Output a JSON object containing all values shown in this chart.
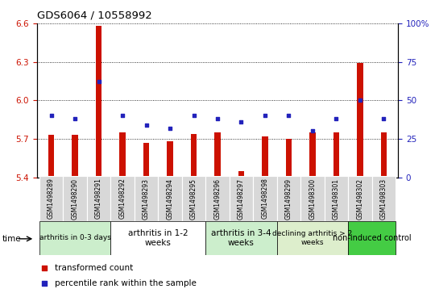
{
  "title": "GDS6064 / 10558992",
  "samples": [
    "GSM1498289",
    "GSM1498290",
    "GSM1498291",
    "GSM1498292",
    "GSM1498293",
    "GSM1498294",
    "GSM1498295",
    "GSM1498296",
    "GSM1498297",
    "GSM1498298",
    "GSM1498299",
    "GSM1498300",
    "GSM1498301",
    "GSM1498302",
    "GSM1498303"
  ],
  "transformed_counts": [
    5.73,
    5.73,
    6.58,
    5.75,
    5.67,
    5.68,
    5.74,
    5.75,
    5.45,
    5.72,
    5.7,
    5.75,
    5.75,
    6.29,
    5.75
  ],
  "percentile_ranks": [
    40,
    38,
    62,
    40,
    34,
    32,
    40,
    38,
    36,
    40,
    40,
    30,
    38,
    50,
    38
  ],
  "ylim_left": [
    5.4,
    6.6
  ],
  "ylim_right": [
    0,
    100
  ],
  "yticks_left": [
    5.4,
    5.7,
    6.0,
    6.3,
    6.6
  ],
  "yticks_right": [
    0,
    25,
    50,
    75,
    100
  ],
  "bar_color": "#cc1100",
  "dot_color": "#2222bb",
  "bar_width": 0.25,
  "groups": [
    {
      "label": "arthritis in 0-3 days",
      "indices": [
        0,
        1,
        2
      ],
      "color": "#cceecc",
      "fontsize": 6.5
    },
    {
      "label": "arthritis in 1-2\nweeks",
      "indices": [
        3,
        4,
        5,
        6
      ],
      "color": "#ffffff",
      "fontsize": 7.5
    },
    {
      "label": "arthritis in 3-4\nweeks",
      "indices": [
        7,
        8,
        9
      ],
      "color": "#cceecc",
      "fontsize": 7.5
    },
    {
      "label": "declining arthritis > 2\nweeks",
      "indices": [
        10,
        11,
        12
      ],
      "color": "#ddeecc",
      "fontsize": 6.5
    },
    {
      "label": "non-induced control",
      "indices": [
        13,
        14
      ],
      "color": "#44cc44",
      "fontsize": 7.0
    }
  ],
  "tick_color_left": "#cc1100",
  "tick_color_right": "#2222bb"
}
